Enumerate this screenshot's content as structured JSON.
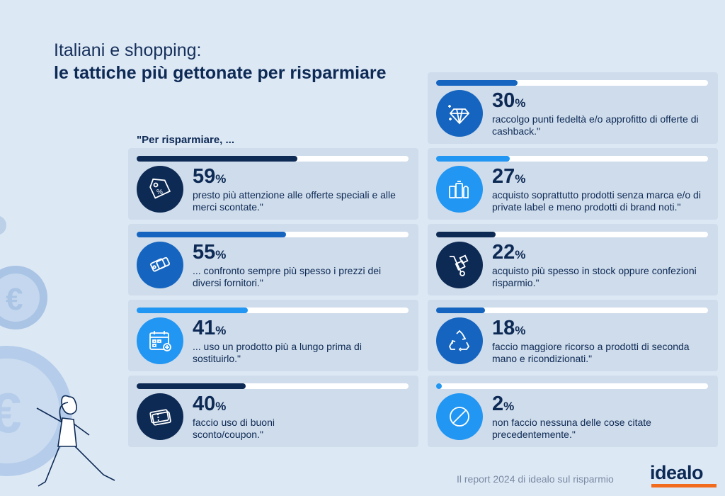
{
  "header": {
    "title_line1": "Italiani e shopping:",
    "title_line2": "le tattiche più gettonate per risparmiare",
    "intro": "\"Per risparmiare, ..."
  },
  "colors": {
    "dark_navy": "#0d2a55",
    "mid_blue": "#1565c0",
    "light_blue": "#2196f3",
    "card_bg": "#cfdceb",
    "page_bg": "#dde8f5",
    "brand_orange": "#f26b1d"
  },
  "chart_data": {
    "type": "bar",
    "categories": [
      "presto più attenzione alle offerte speciali e alle merci scontate.\"",
      "... confronto sempre più spesso i prezzi dei diversi fornitori.\"",
      "... uso un prodotto più a lungo prima di sostituirlo.\"",
      "faccio uso di buoni sconto/coupon.\"",
      "raccolgo punti fedeltà e/o approfitto di offerte di cashback.\"",
      "acquisto soprattutto prodotti senza marca e/o di private label e meno prodotti di brand noti.\"",
      "acquisto più spesso in stock oppure confezioni risparmio.\"",
      "faccio maggiore ricorso a prodotti di seconda mano e ricondizionati.\"",
      "non faccio nessuna delle cose citate precedentemente.\""
    ],
    "values": [
      59,
      55,
      41,
      40,
      30,
      27,
      22,
      18,
      2
    ],
    "ylim": [
      0,
      100
    ]
  },
  "items": [
    {
      "value": "59",
      "unit": "%",
      "text": "presto più attenzione alle offerte speciali e alle merci scontate.\"",
      "icon": "price-tag-icon",
      "color": "#0d2a55"
    },
    {
      "value": "55",
      "unit": "%",
      "text": "... confronto sempre più spesso i prezzi dei diversi fornitori.\"",
      "icon": "compare-tags-icon",
      "color": "#1565c0"
    },
    {
      "value": "41",
      "unit": "%",
      "text": "... uso un prodotto più a lungo prima di sostituirlo.\"",
      "icon": "calendar-icon",
      "color": "#2196f3"
    },
    {
      "value": "40",
      "unit": "%",
      "text": "faccio uso di buoni sconto/coupon.\"",
      "icon": "coupon-icon",
      "color": "#0d2a55"
    },
    {
      "value": "30",
      "unit": "%",
      "text": "raccolgo punti fedeltà e/o approfitto di offerte di cashback.\"",
      "icon": "diamond-icon",
      "color": "#1565c0"
    },
    {
      "value": "27",
      "unit": "%",
      "text": "acquisto soprattutto prodotti senza marca e/o di private label e meno prodotti di brand noti.\"",
      "icon": "products-icon",
      "color": "#2196f3"
    },
    {
      "value": "22",
      "unit": "%",
      "text": "acquisto più spesso in stock oppure confezioni risparmio.\"",
      "icon": "hand-truck-icon",
      "color": "#0d2a55"
    },
    {
      "value": "18",
      "unit": "%",
      "text": "faccio maggiore ricorso a prodotti di seconda mano e ricondizionati.\"",
      "icon": "recycle-icon",
      "color": "#1565c0"
    },
    {
      "value": "2",
      "unit": "%",
      "text": "non faccio nessuna delle cose citate precedentemente.\"",
      "icon": "none-icon",
      "color": "#2196f3"
    }
  ],
  "footer": {
    "source": "Il report 2024 di idealo sul risparmio",
    "logo": "idealo"
  }
}
